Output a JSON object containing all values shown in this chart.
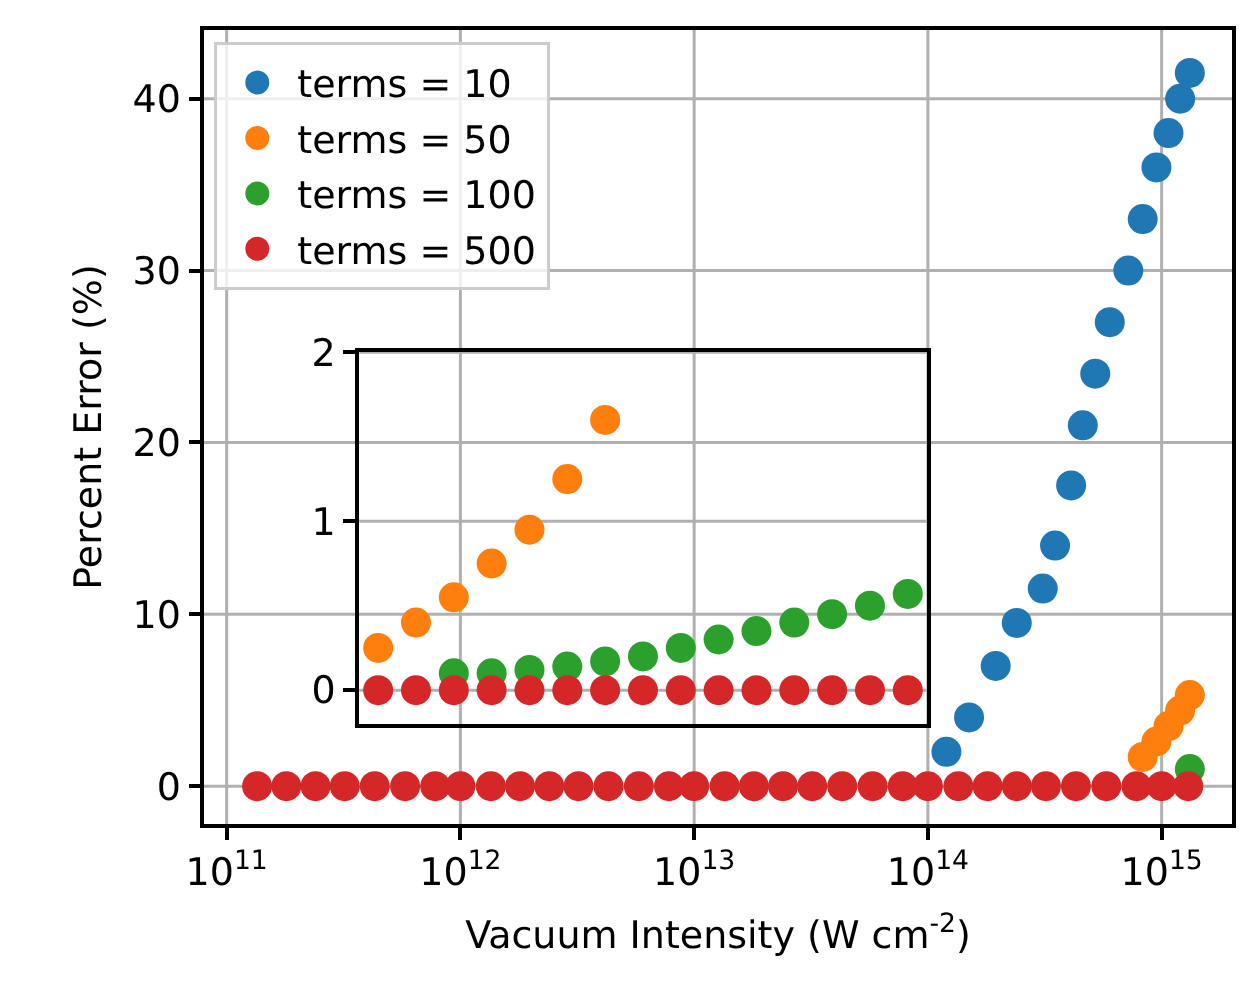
{
  "chart_data": [
    {
      "type": "scatter",
      "xlabel": "Vacuum Intensity (W cm$^{-2}$)",
      "ylabel": "Percent Error (%)",
      "log": "x",
      "grid": true,
      "legend": "top left",
      "marker": "circle",
      "xlim": [
        80000000000.0,
        2000000000000000.0
      ],
      "xticks": [
        {
          "value": 100000000000.0,
          "label": "10$^{11}$"
        },
        {
          "value": 1000000000000.0,
          "label": "10$^{12}$"
        },
        {
          "value": 10000000000000.0,
          "label": "10$^{13}$"
        },
        {
          "value": 100000000000000.0,
          "label": "10$^{14}$"
        },
        {
          "value": 1000000000000000.0,
          "label": "10$^{15}$"
        }
      ],
      "ylim": [
        -2.2,
        44
      ],
      "yticks": [
        0,
        10,
        20,
        30,
        40
      ],
      "series": [
        {
          "name": "terms = 10",
          "color": "#1f77b4",
          "x": [
            120000000000000.0,
            150000000000000.0,
            195000000000000.0,
            240000000000000.0,
            310000000000000.0,
            350000000000000.0,
            410000000000000.0,
            460000000000000.0,
            520000000000000.0,
            600000000000000.0,
            720000000000000.0,
            830000000000000.0,
            950000000000000.0,
            1070000000000000.0,
            1200000000000000.0,
            1320000000000000.0
          ],
          "values": [
            2,
            4,
            7,
            9.5,
            11.5,
            14,
            17.5,
            21,
            24,
            27,
            30,
            33,
            36,
            38,
            40,
            41.5
          ]
        },
        {
          "name": "terms = 50",
          "color": "#ff7f0e",
          "x": [
            830000000000000.0,
            950000000000000.0,
            1070000000000000.0,
            1200000000000000.0,
            1320000000000000.0
          ],
          "values": [
            1.7,
            2.6,
            3.5,
            4.4,
            5.3
          ]
        },
        {
          "name": "terms = 100",
          "color": "#2ca02c",
          "x": [
            1320000000000000.0
          ],
          "values": [
            1.0
          ]
        },
        {
          "name": "terms = 500",
          "color": "#d62728",
          "x": [
            135000000000.0,
            180000000000.0,
            240000000000.0,
            320000000000.0,
            430000000000.0,
            580000000000.0,
            780000000000.0,
            1000000000000.0,
            1350000000000.0,
            1800000000000.0,
            2400000000000.0,
            3200000000000.0,
            4300000000000.0,
            5800000000000.0,
            7800000000000.0,
            10000000000000.0,
            13500000000000.0,
            18000000000000.0,
            24000000000000.0,
            32000000000000.0,
            43000000000000.0,
            58000000000000.0,
            78000000000000.0,
            100000000000000.0,
            135000000000000.0,
            180000000000000.0,
            240000000000000.0,
            320000000000000.0,
            430000000000000.0,
            580000000000000.0,
            780000000000000.0,
            1000000000000000.0,
            1300000000000000.0
          ],
          "values": [
            0,
            0,
            0,
            0,
            0,
            0,
            0,
            0,
            0,
            0,
            0,
            0,
            0,
            0,
            0,
            0,
            0,
            0,
            0,
            0,
            0,
            0,
            0,
            0,
            0,
            0,
            0,
            0,
            0,
            0,
            0,
            0,
            0
          ]
        }
      ]
    },
    {
      "type": "scatter",
      "grid": "y",
      "marker": "circle",
      "tick_labels": "y",
      "categories": [
        null,
        null,
        null,
        null,
        null,
        null,
        null,
        null,
        null,
        null,
        null,
        null,
        null,
        null,
        null
      ],
      "ylim": [
        -0.2,
        2
      ],
      "yticks": [
        0,
        1,
        2
      ],
      "series": [
        {
          "color": "#ff7f0e",
          "values": [
            0.25,
            0.4,
            0.55,
            0.75,
            0.95,
            1.25,
            1.6,
            null,
            null,
            null,
            null,
            null,
            null,
            null,
            null
          ]
        },
        {
          "color": "#2ca02c",
          "values": [
            null,
            null,
            0.1,
            0.1,
            0.12,
            0.14,
            0.17,
            0.2,
            0.25,
            0.3,
            0.35,
            0.4,
            0.45,
            0.5,
            0.57
          ]
        },
        {
          "color": "#d62728",
          "values": [
            0,
            0,
            0,
            0,
            0,
            0,
            0,
            0,
            0,
            0,
            0,
            0,
            0,
            0,
            0
          ]
        }
      ]
    }
  ]
}
